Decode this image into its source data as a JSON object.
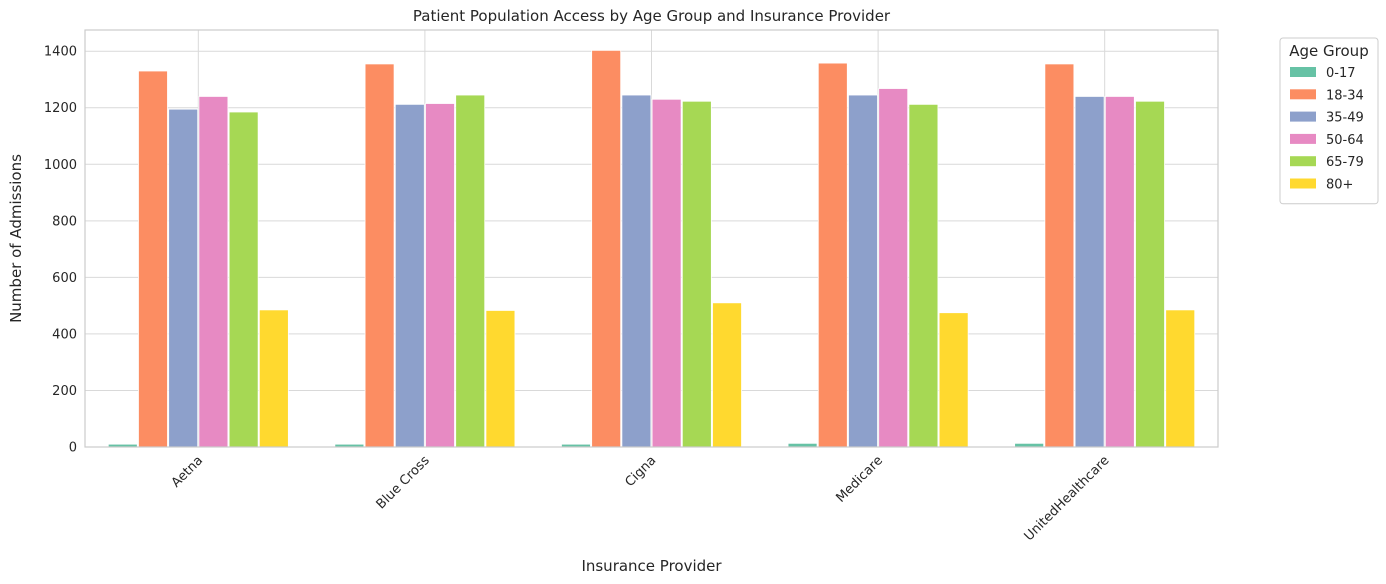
{
  "chart_data": {
    "type": "bar",
    "title": "Patient Population Access by Age Group and Insurance Provider",
    "xlabel": "Insurance Provider",
    "ylabel": "Number of Admissions",
    "ylim": [
      0,
      1475
    ],
    "yticks": [
      0,
      200,
      400,
      600,
      800,
      1000,
      1200,
      1400
    ],
    "grid": true,
    "legend_title": "Age Group",
    "legend_position": "outside-top-right",
    "categories": [
      "Aetna",
      "Blue Cross",
      "Cigna",
      "Medicare",
      "UnitedHealthcare"
    ],
    "series": [
      {
        "name": "0-17",
        "color": "#66c2a5",
        "values": [
          10,
          10,
          10,
          13,
          13
        ]
      },
      {
        "name": "18-34",
        "color": "#fc8d62",
        "values": [
          1330,
          1355,
          1403,
          1358,
          1355
        ]
      },
      {
        "name": "35-49",
        "color": "#8da0cb",
        "values": [
          1195,
          1212,
          1245,
          1245,
          1240
        ]
      },
      {
        "name": "50-64",
        "color": "#e78ac3",
        "values": [
          1240,
          1215,
          1230,
          1268,
          1240
        ]
      },
      {
        "name": "65-79",
        "color": "#a6d854",
        "values": [
          1185,
          1245,
          1223,
          1212,
          1223
        ]
      },
      {
        "name": "80+",
        "color": "#ffd92f",
        "values": [
          485,
          483,
          510,
          475,
          485
        ]
      }
    ]
  }
}
